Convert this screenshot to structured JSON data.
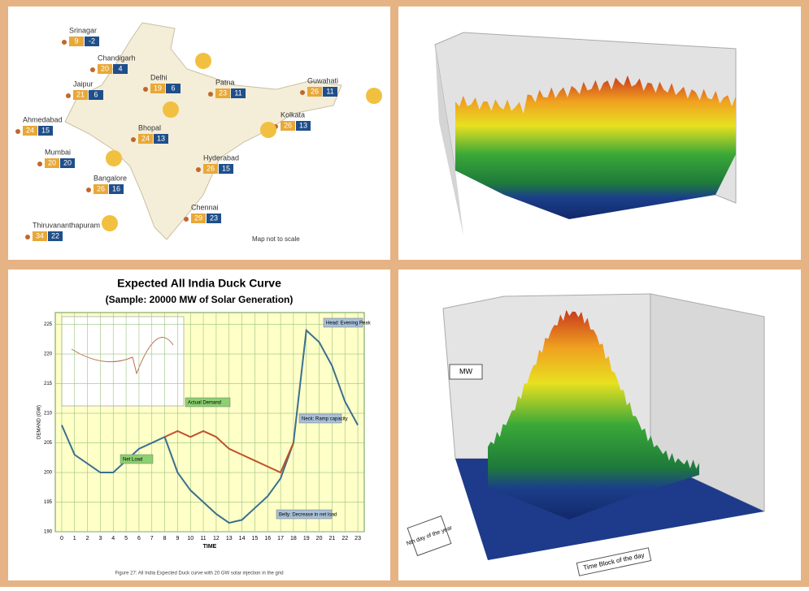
{
  "map": {
    "note": "Map not to scale",
    "cities": [
      {
        "name": "Srinagar",
        "high": 9,
        "low": -2
      },
      {
        "name": "Chandigarh",
        "high": 20,
        "low": 4
      },
      {
        "name": "Delhi",
        "high": 19,
        "low": 6
      },
      {
        "name": "Jaipur",
        "high": 21,
        "low": 6
      },
      {
        "name": "Patna",
        "high": 23,
        "low": 11
      },
      {
        "name": "Guwahati",
        "high": 26,
        "low": 11
      },
      {
        "name": "Ahmedabad",
        "high": 24,
        "low": 15
      },
      {
        "name": "Kolkata",
        "high": 26,
        "low": 13
      },
      {
        "name": "Bhopal",
        "high": 24,
        "low": 13
      },
      {
        "name": "Mumbai",
        "high": 20,
        "low": 20
      },
      {
        "name": "Hyderabad",
        "high": 26,
        "low": 15
      },
      {
        "name": "Bangalore",
        "high": 26,
        "low": 16
      },
      {
        "name": "Chennai",
        "high": 29,
        "low": 23
      },
      {
        "name": "Thiruvananthapuram",
        "high": 34,
        "low": 22
      }
    ]
  },
  "chart_data": {
    "type": "line",
    "title": "Expected All India Duck Curve",
    "subtitle": "(Sample: 20000 MW of Solar Generation)",
    "x_label": "TIME",
    "y_label": "DEMAND (GW)",
    "x": [
      0,
      1,
      2,
      3,
      4,
      5,
      6,
      7,
      8,
      9,
      10,
      11,
      12,
      13,
      14,
      15,
      16,
      17,
      18,
      19,
      20,
      21,
      22,
      23
    ],
    "series": [
      {
        "name": "Net Load",
        "color": "#3a6f8f",
        "values": [
          208,
          203,
          201.5,
          200,
          200,
          202,
          204,
          205,
          206,
          200,
          197,
          195,
          193,
          191.5,
          192,
          194,
          196,
          199,
          205,
          224,
          222,
          218,
          212,
          208
        ]
      },
      {
        "name": "Actual Demand",
        "color": "#c0502a",
        "values": [
          null,
          null,
          null,
          null,
          null,
          null,
          null,
          null,
          206,
          207,
          206,
          207,
          206,
          204,
          203,
          202,
          201,
          200,
          205,
          null,
          null,
          null,
          null,
          null
        ]
      }
    ],
    "xlim": [
      -0.5,
      23.5
    ],
    "ylim": [
      190,
      227
    ],
    "xticks": [
      0,
      1,
      2,
      3,
      4,
      5,
      6,
      7,
      8,
      9,
      10,
      11,
      12,
      13,
      14,
      15,
      16,
      17,
      18,
      19,
      20,
      21,
      22,
      23
    ],
    "yticks": [
      190,
      195,
      200,
      205,
      210,
      215,
      220,
      225
    ],
    "grid": true,
    "annotations": [
      "Head: Evening Peak",
      "Neck: Ramp capacity",
      "Belly: Decrease in net load"
    ],
    "caption": "Figure 27: All India Expected Duck curve with 20 GW solar injection in the grid"
  },
  "surface": {
    "y_label": "MW",
    "x_label": "Time Block of the day",
    "z_label": "Nth day of the year"
  }
}
